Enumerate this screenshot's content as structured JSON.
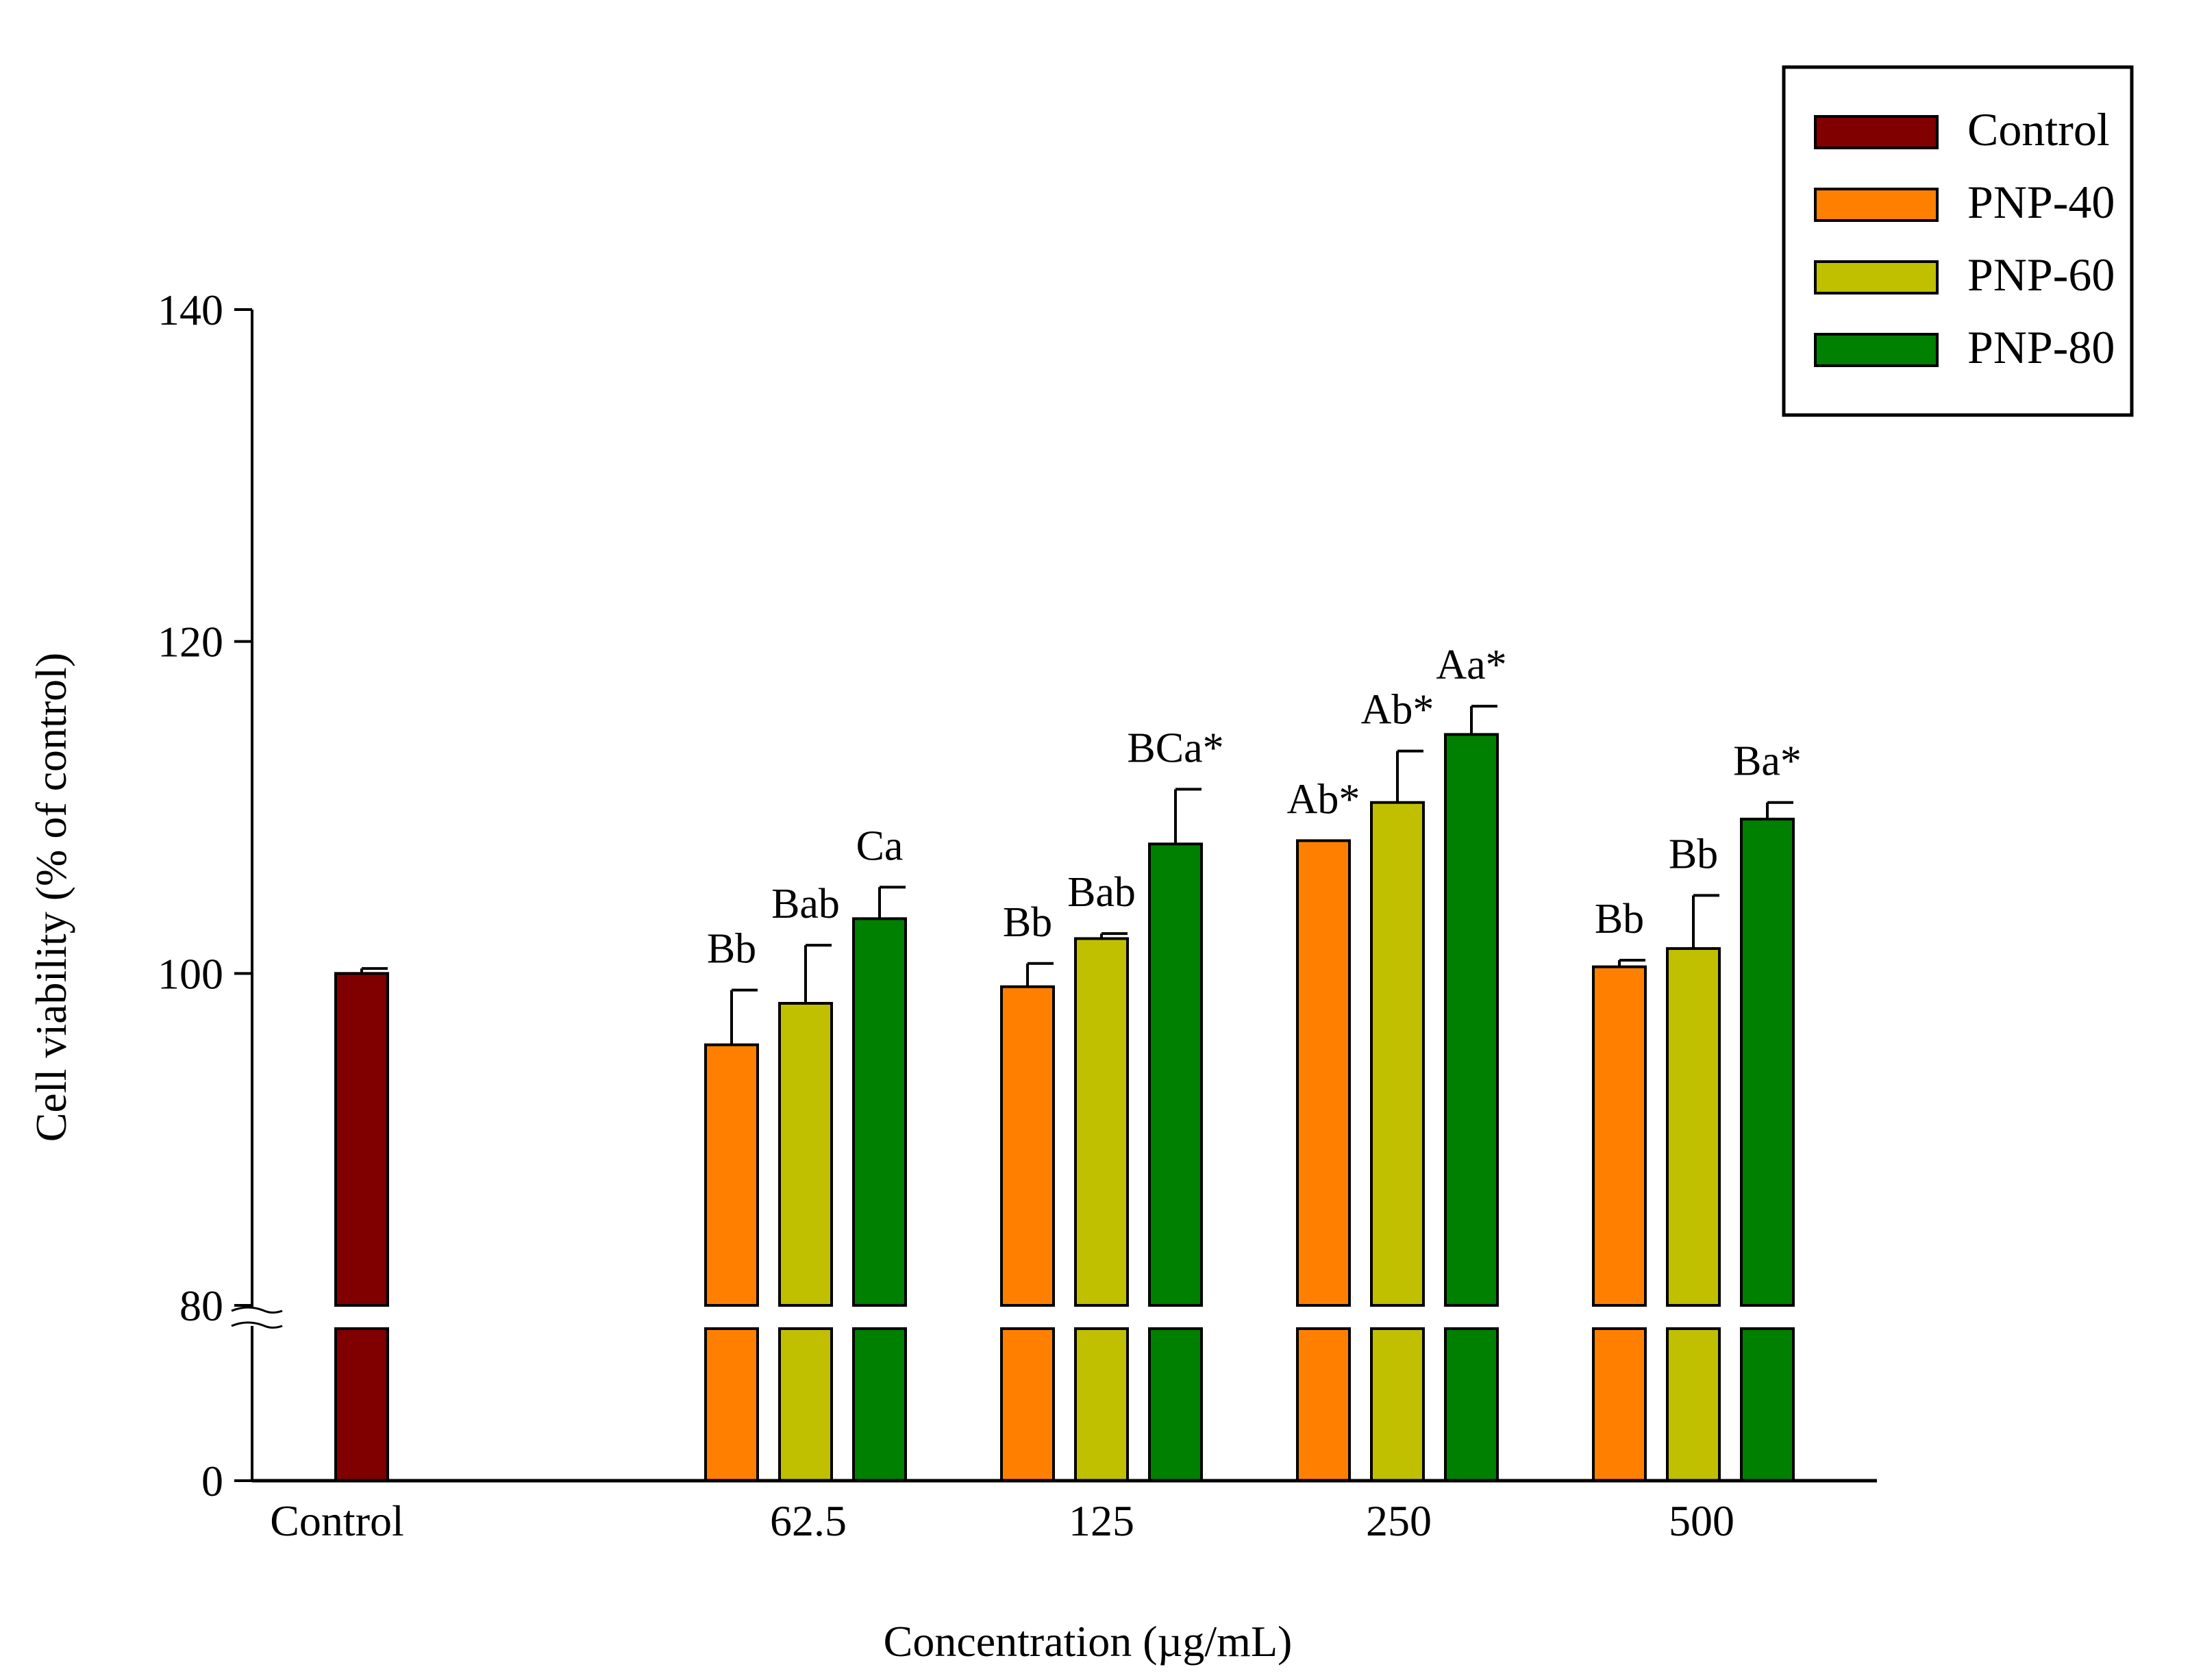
{
  "chart_data": {
    "type": "bar",
    "xlabel": "Concentration (µg/mL)",
    "ylabel": "Cell viability (% of control)",
    "ylim_lower": [
      0,
      80
    ],
    "ylim_upper": [
      80,
      140
    ],
    "y_axis_break": true,
    "yticks": [
      "0",
      "80",
      "100",
      "120",
      "140"
    ],
    "categories": [
      "Control",
      "62.5",
      "125",
      "250",
      "500"
    ],
    "legend_position": "top-right",
    "series": [
      {
        "name": "Control",
        "color": "#800000",
        "values": [
          100.0,
          null,
          null,
          null,
          null
        ],
        "errors": [
          0.3,
          null,
          null,
          null,
          null
        ],
        "labels": [
          "",
          "",
          "",
          "",
          ""
        ]
      },
      {
        "name": "PNP-40",
        "color": "#FF8000",
        "values": [
          null,
          95.7,
          99.2,
          108.0,
          100.4
        ],
        "errors": [
          null,
          3.3,
          1.4,
          0.0,
          0.4
        ],
        "labels": [
          "",
          "Bb",
          "Bb",
          "Ab*",
          "Bb"
        ]
      },
      {
        "name": "PNP-60",
        "color": "#C0C000",
        "values": [
          null,
          98.2,
          102.1,
          110.3,
          101.5
        ],
        "errors": [
          null,
          3.5,
          0.3,
          3.1,
          3.2
        ],
        "labels": [
          "",
          "Bab",
          "Bab",
          "Ab*",
          "Bb"
        ]
      },
      {
        "name": "PNP-80",
        "color": "#008000",
        "values": [
          null,
          103.3,
          107.8,
          114.4,
          109.3
        ],
        "errors": [
          null,
          1.9,
          3.3,
          1.7,
          1.0
        ],
        "labels": [
          "",
          "Ca",
          "BCa*",
          "Aa*",
          "Ba*"
        ]
      }
    ]
  }
}
